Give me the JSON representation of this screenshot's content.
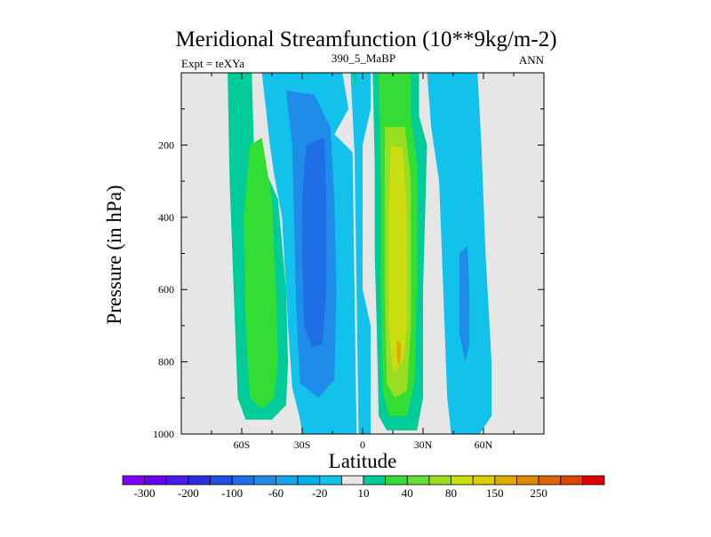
{
  "chart_data": {
    "type": "heatmap",
    "title": "Meridional Streamfunction (10**9kg/m-2)",
    "left_string": "Expt = teXYa",
    "center_string": "390_5_MaBP",
    "right_string": "ANN",
    "xlabel": "Latitude",
    "ylabel": "Pressure (in hPa)",
    "xlim": [
      -90,
      90
    ],
    "ylim": [
      1000,
      0
    ],
    "x_ticks": [
      {
        "value": -60,
        "label": "60S"
      },
      {
        "value": -30,
        "label": "30S"
      },
      {
        "value": 0,
        "label": "0"
      },
      {
        "value": 30,
        "label": "30N"
      },
      {
        "value": 60,
        "label": "60N"
      }
    ],
    "y_ticks": [
      {
        "value": 200,
        "label": "200"
      },
      {
        "value": 400,
        "label": "400"
      },
      {
        "value": 600,
        "label": "600"
      },
      {
        "value": 800,
        "label": "800"
      },
      {
        "value": 1000,
        "label": "1000"
      }
    ],
    "colorbar": {
      "colors": [
        "#7f00ff",
        "#6a00f0",
        "#4c1ae8",
        "#2a2ee0",
        "#1f50e6",
        "#1f6ee6",
        "#1e8ce8",
        "#12a4ec",
        "#00b0e6",
        "#12c2ea",
        "#e6e6e6",
        "#00cc99",
        "#33dd33",
        "#66dd33",
        "#99dd22",
        "#ccdd11",
        "#ddcc00",
        "#ddaa00",
        "#dd8800",
        "#dd6600",
        "#dd4400",
        "#dd0000"
      ],
      "labels": [
        "-300",
        "-200",
        "-100",
        "-60",
        "-20",
        "10",
        "40",
        "80",
        "150",
        "250"
      ]
    },
    "contour_regions": [
      {
        "name": "sh-polar-cell",
        "value_class": "10",
        "color": "#00cc99",
        "polygon": [
          [
            -67,
            0
          ],
          [
            -55,
            0
          ],
          [
            -54,
            200
          ],
          [
            -42,
            350
          ],
          [
            -38,
            600
          ],
          [
            -37,
            800
          ],
          [
            -38,
            920
          ],
          [
            -45,
            960
          ],
          [
            -58,
            960
          ],
          [
            -62,
            900
          ],
          [
            -64,
            600
          ],
          [
            -66,
            300
          ]
        ]
      },
      {
        "name": "sh-polar-core",
        "value_class": "40",
        "color": "#33dd33",
        "polygon": [
          [
            -56,
            200
          ],
          [
            -50,
            180
          ],
          [
            -45,
            350
          ],
          [
            -43,
            600
          ],
          [
            -42,
            800
          ],
          [
            -44,
            900
          ],
          [
            -50,
            930
          ],
          [
            -56,
            900
          ],
          [
            -58,
            700
          ],
          [
            -59,
            400
          ]
        ]
      },
      {
        "name": "sh-ferrel-cell",
        "value_class": "-20",
        "color": "#12c2ea",
        "polygon": [
          [
            -50,
            0
          ],
          [
            -10,
            0
          ],
          [
            -7,
            100
          ],
          [
            -14,
            170
          ],
          [
            -5,
            220
          ],
          [
            -4,
            600
          ],
          [
            -3,
            1000
          ],
          [
            -30,
            1000
          ],
          [
            -31,
            960
          ],
          [
            -35,
            870
          ],
          [
            -37,
            700
          ],
          [
            -40,
            400
          ],
          [
            -44,
            280
          ],
          [
            -46,
            200
          ]
        ]
      },
      {
        "name": "sh-ferrel-mid",
        "value_class": "-60",
        "color": "#1e8ce8",
        "polygon": [
          [
            -38,
            50
          ],
          [
            -24,
            60
          ],
          [
            -16,
            150
          ],
          [
            -14,
            350
          ],
          [
            -13,
            600
          ],
          [
            -14,
            850
          ],
          [
            -22,
            900
          ],
          [
            -31,
            860
          ],
          [
            -33,
            650
          ],
          [
            -34,
            400
          ],
          [
            -35,
            200
          ]
        ]
      },
      {
        "name": "sh-ferrel-core",
        "value_class": "-100",
        "color": "#1f6ee6",
        "polygon": [
          [
            -28,
            200
          ],
          [
            -19,
            180
          ],
          [
            -18,
            350
          ],
          [
            -18,
            600
          ],
          [
            -20,
            750
          ],
          [
            -25,
            760
          ],
          [
            -29,
            700
          ],
          [
            -30,
            500
          ],
          [
            -30,
            350
          ]
        ]
      },
      {
        "name": "eq-negative-strip",
        "value_class": "-20",
        "color": "#12c2ea",
        "polygon": [
          [
            -6,
            0
          ],
          [
            4,
            0
          ],
          [
            4,
            100
          ],
          [
            0,
            200
          ],
          [
            0,
            600
          ],
          [
            4,
            700
          ],
          [
            4,
            1000
          ],
          [
            -2,
            1000
          ],
          [
            -3,
            600
          ],
          [
            -4,
            220
          ]
        ]
      },
      {
        "name": "nh-cell",
        "value_class": "10",
        "color": "#00cc99",
        "polygon": [
          [
            5,
            0
          ],
          [
            28,
            0
          ],
          [
            28,
            120
          ],
          [
            32,
            200
          ],
          [
            30,
            600
          ],
          [
            30,
            900
          ],
          [
            27,
            990
          ],
          [
            12,
            990
          ],
          [
            8,
            950
          ],
          [
            7,
            700
          ],
          [
            6,
            500
          ],
          [
            6,
            250
          ]
        ]
      },
      {
        "name": "nh-cell-40",
        "value_class": "40",
        "color": "#33dd33",
        "polygon": [
          [
            8,
            0
          ],
          [
            24,
            0
          ],
          [
            24,
            120
          ],
          [
            27,
            250
          ],
          [
            27,
            600
          ],
          [
            26,
            850
          ],
          [
            22,
            950
          ],
          [
            13,
            950
          ],
          [
            10,
            880
          ],
          [
            9,
            600
          ],
          [
            9,
            300
          ]
        ]
      },
      {
        "name": "nh-cell-80",
        "value_class": "80",
        "color": "#99dd22",
        "polygon": [
          [
            11,
            150
          ],
          [
            21,
            150
          ],
          [
            24,
            300
          ],
          [
            24,
            700
          ],
          [
            22,
            880
          ],
          [
            16,
            900
          ],
          [
            12,
            860
          ],
          [
            11,
            600
          ],
          [
            11,
            300
          ]
        ]
      },
      {
        "name": "nh-cell-core",
        "value_class": "150",
        "color": "#ccdd11",
        "polygon": [
          [
            14,
            200
          ],
          [
            20,
            210
          ],
          [
            22,
            400
          ],
          [
            22,
            700
          ],
          [
            20,
            800
          ],
          [
            15,
            830
          ],
          [
            13,
            700
          ],
          [
            13,
            400
          ]
        ]
      },
      {
        "name": "nh-cell-peak",
        "value_class": "250",
        "color": "#ddaa00",
        "polygon": [
          [
            17,
            740
          ],
          [
            19,
            750
          ],
          [
            19,
            790
          ],
          [
            18,
            810
          ],
          [
            17,
            790
          ]
        ]
      },
      {
        "name": "nh-ferrel-cell",
        "value_class": "-20",
        "color": "#12c2ea",
        "polygon": [
          [
            32,
            0
          ],
          [
            57,
            0
          ],
          [
            59,
            200
          ],
          [
            61,
            500
          ],
          [
            64,
            800
          ],
          [
            64,
            950
          ],
          [
            58,
            1000
          ],
          [
            44,
            1000
          ],
          [
            42,
            900
          ],
          [
            40,
            600
          ],
          [
            38,
            300
          ],
          [
            34,
            150
          ]
        ]
      },
      {
        "name": "nh-ferrel-core",
        "value_class": "-60",
        "color": "#1e8ce8",
        "polygon": [
          [
            48,
            500
          ],
          [
            52,
            480
          ],
          [
            53,
            600
          ],
          [
            53,
            750
          ],
          [
            51,
            800
          ],
          [
            48,
            720
          ]
        ]
      },
      {
        "name": "nh-top-patch",
        "value_class": "10",
        "color": "#00cc99",
        "polygon": [
          [
            -5,
            0
          ],
          [
            -3,
            0
          ],
          [
            -3,
            30
          ],
          [
            -4,
            40
          ]
        ]
      }
    ]
  }
}
